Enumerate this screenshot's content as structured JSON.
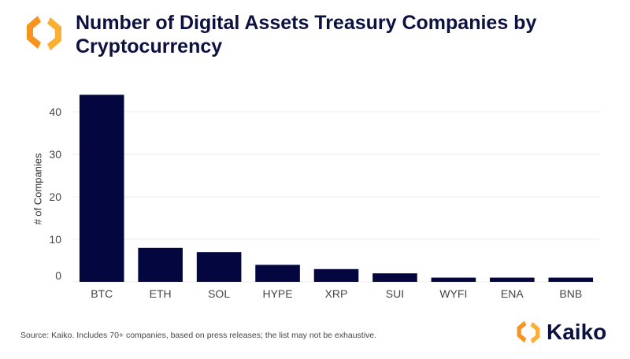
{
  "title": "Number of Digital Assets Treasury Companies by Cryptocurrency",
  "source": "Source: Kaiko.  Includes 70+ companies, based on press releases; the list may not be exhaustive.",
  "brand": "Kaiko",
  "colors": {
    "bar": "#03063f",
    "title": "#0d1140",
    "logo_orange": "#f7941d",
    "grid": "#eeeeee"
  },
  "chart_data": {
    "type": "bar",
    "title": "Number of Digital Assets Treasury Companies by Cryptocurrency",
    "xlabel": "",
    "ylabel": "# of Companies",
    "categories": [
      "BTC",
      "ETH",
      "SOL",
      "HYPE",
      "XRP",
      "SUI",
      "WYFI",
      "ENA",
      "BNB"
    ],
    "values": [
      44,
      8,
      7,
      4,
      3,
      2,
      1,
      1,
      1
    ],
    "yticks": [
      0,
      10,
      20,
      30,
      40
    ],
    "ylim": [
      0,
      45
    ],
    "grid": true
  }
}
